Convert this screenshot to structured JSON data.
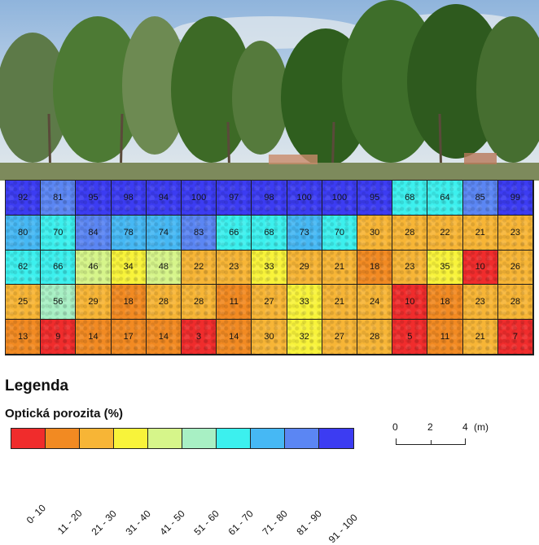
{
  "grid": {
    "rows": [
      [
        92,
        81,
        95,
        98,
        94,
        100,
        97,
        98,
        100,
        100,
        95,
        68,
        64,
        85,
        99
      ],
      [
        80,
        70,
        84,
        78,
        74,
        83,
        66,
        68,
        73,
        70,
        30,
        28,
        22,
        21,
        23
      ],
      [
        62,
        66,
        46,
        34,
        48,
        22,
        23,
        33,
        29,
        21,
        18,
        23,
        35,
        10,
        26
      ],
      [
        25,
        56,
        29,
        18,
        28,
        28,
        11,
        27,
        33,
        21,
        24,
        10,
        18,
        23,
        28
      ],
      [
        13,
        9,
        14,
        17,
        14,
        3,
        14,
        30,
        32,
        27,
        28,
        5,
        11,
        21,
        7
      ]
    ]
  },
  "legend": {
    "title": "Legenda",
    "subtitle": "Optická porozita (%)",
    "classes": [
      {
        "label": "0- 10",
        "min": 0,
        "max": 10,
        "color": "#f02c2c"
      },
      {
        "label": "11 - 20",
        "min": 11,
        "max": 20,
        "color": "#f28a22"
      },
      {
        "label": "21 - 30",
        "min": 21,
        "max": 30,
        "color": "#f7b536"
      },
      {
        "label": "31 - 40",
        "min": 31,
        "max": 40,
        "color": "#f8f33a"
      },
      {
        "label": "41 - 50",
        "min": 41,
        "max": 50,
        "color": "#d6f58a"
      },
      {
        "label": "51 - 60",
        "min": 51,
        "max": 60,
        "color": "#a8f0c4"
      },
      {
        "label": "61 - 70",
        "min": 61,
        "max": 70,
        "color": "#3cf0ee"
      },
      {
        "label": "71 - 80",
        "min": 71,
        "max": 80,
        "color": "#46b8f4"
      },
      {
        "label": "81 - 90",
        "min": 81,
        "max": 90,
        "color": "#5b86f3"
      },
      {
        "label": "91 - 100",
        "min": 91,
        "max": 100,
        "color": "#3c3cf2"
      }
    ]
  },
  "scale": {
    "ticks": [
      "0",
      "2",
      "4"
    ],
    "unit": "(m)"
  }
}
